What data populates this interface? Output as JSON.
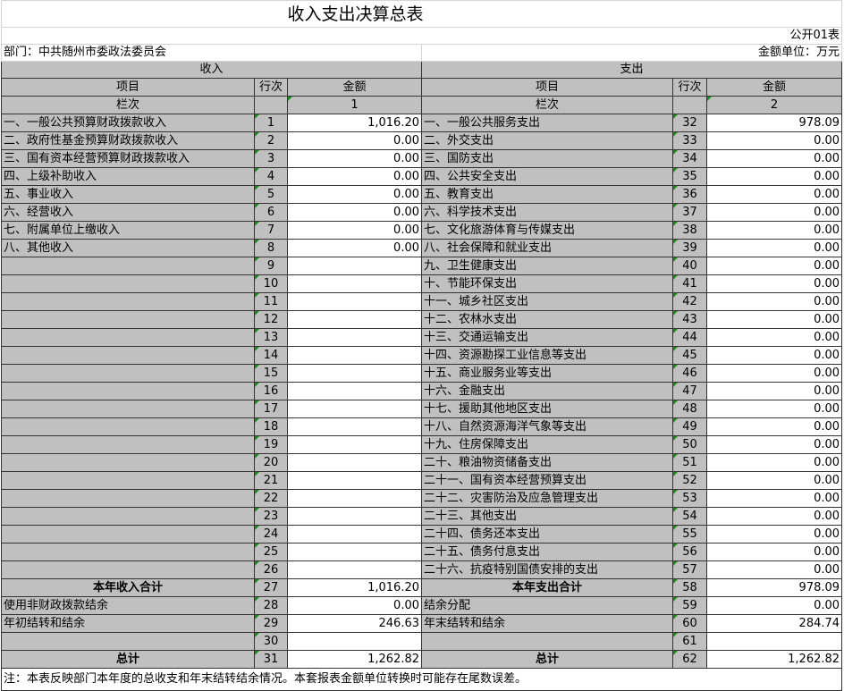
{
  "title": "收入支出决算总表",
  "form_code": "公开01表",
  "department": "部门：中共随州市委政法委员会",
  "unit": "金额单位：万元",
  "income_header": "收入",
  "expense_header": "支出",
  "col_item": "项目",
  "col_line": "行次",
  "col_amount": "金额",
  "col_index_label": "栏次",
  "income_col_no": "1",
  "expense_col_no": "2",
  "rows": [
    {
      "il": "一、一般公共预算财政拨款收入",
      "in": "1",
      "ia": "1,016.20",
      "el": "一、一般公共服务支出",
      "en": "32",
      "ea": "978.09"
    },
    {
      "il": "二、政府性基金预算财政拨款收入",
      "in": "2",
      "ia": "0.00",
      "el": "二、外交支出",
      "en": "33",
      "ea": "0.00"
    },
    {
      "il": "三、国有资本经营预算财政拨款收入",
      "in": "3",
      "ia": "0.00",
      "el": "三、国防支出",
      "en": "34",
      "ea": "0.00"
    },
    {
      "il": "四、上级补助收入",
      "in": "4",
      "ia": "0.00",
      "el": "四、公共安全支出",
      "en": "35",
      "ea": "0.00"
    },
    {
      "il": "五、事业收入",
      "in": "5",
      "ia": "0.00",
      "el": "五、教育支出",
      "en": "36",
      "ea": "0.00"
    },
    {
      "il": "六、经营收入",
      "in": "6",
      "ia": "0.00",
      "el": "六、科学技术支出",
      "en": "37",
      "ea": "0.00"
    },
    {
      "il": "七、附属单位上缴收入",
      "in": "7",
      "ia": "0.00",
      "el": "七、文化旅游体育与传媒支出",
      "en": "38",
      "ea": "0.00"
    },
    {
      "il": "八、其他收入",
      "in": "8",
      "ia": "0.00",
      "el": "八、社会保障和就业支出",
      "en": "39",
      "ea": "0.00"
    },
    {
      "il": "",
      "in": "9",
      "ia": "",
      "el": "九、卫生健康支出",
      "en": "40",
      "ea": "0.00"
    },
    {
      "il": "",
      "in": "10",
      "ia": "",
      "el": "十、节能环保支出",
      "en": "41",
      "ea": "0.00"
    },
    {
      "il": "",
      "in": "11",
      "ia": "",
      "el": "十一、城乡社区支出",
      "en": "42",
      "ea": "0.00"
    },
    {
      "il": "",
      "in": "12",
      "ia": "",
      "el": "十二、农林水支出",
      "en": "43",
      "ea": "0.00"
    },
    {
      "il": "",
      "in": "13",
      "ia": "",
      "el": "十三、交通运输支出",
      "en": "44",
      "ea": "0.00"
    },
    {
      "il": "",
      "in": "14",
      "ia": "",
      "el": "十四、资源勘探工业信息等支出",
      "en": "45",
      "ea": "0.00"
    },
    {
      "il": "",
      "in": "15",
      "ia": "",
      "el": "十五、商业服务业等支出",
      "en": "46",
      "ea": "0.00"
    },
    {
      "il": "",
      "in": "16",
      "ia": "",
      "el": "十六、金融支出",
      "en": "47",
      "ea": "0.00"
    },
    {
      "il": "",
      "in": "17",
      "ia": "",
      "el": "十七、援助其他地区支出",
      "en": "48",
      "ea": "0.00"
    },
    {
      "il": "",
      "in": "18",
      "ia": "",
      "el": "十八、自然资源海洋气象等支出",
      "en": "49",
      "ea": "0.00"
    },
    {
      "il": "",
      "in": "19",
      "ia": "",
      "el": "十九、住房保障支出",
      "en": "50",
      "ea": "0.00"
    },
    {
      "il": "",
      "in": "20",
      "ia": "",
      "el": "二十、粮油物资储备支出",
      "en": "51",
      "ea": "0.00"
    },
    {
      "il": "",
      "in": "21",
      "ia": "",
      "el": "二十一、国有资本经营预算支出",
      "en": "52",
      "ea": "0.00"
    },
    {
      "il": "",
      "in": "22",
      "ia": "",
      "el": "二十二、灾害防治及应急管理支出",
      "en": "53",
      "ea": "0.00"
    },
    {
      "il": "",
      "in": "23",
      "ia": "",
      "el": "二十三、其他支出",
      "en": "54",
      "ea": "0.00"
    },
    {
      "il": "",
      "in": "24",
      "ia": "",
      "el": "二十四、债务还本支出",
      "en": "55",
      "ea": "0.00"
    },
    {
      "il": "",
      "in": "25",
      "ia": "",
      "el": "二十五、债务付息支出",
      "en": "56",
      "ea": "0.00"
    },
    {
      "il": "",
      "in": "26",
      "ia": "",
      "el": "二十六、抗疫特别国债安排的支出",
      "en": "57",
      "ea": "0.00"
    },
    {
      "il": "本年收入合计",
      "in": "27",
      "ia": "1,016.20",
      "el": "本年支出合计",
      "en": "58",
      "ea": "978.09",
      "bold": true
    },
    {
      "il": "使用非财政拨款结余",
      "in": "28",
      "ia": "0.00",
      "el": "结余分配",
      "en": "59",
      "ea": "0.00"
    },
    {
      "il": "年初结转和结余",
      "in": "29",
      "ia": "246.63",
      "el": "年末结转和结余",
      "en": "60",
      "ea": "284.74"
    },
    {
      "il": "",
      "in": "30",
      "ia": "",
      "el": "",
      "en": "61",
      "ea": ""
    },
    {
      "il": "总计",
      "in": "31",
      "ia": "1,262.82",
      "el": "总计",
      "en": "62",
      "ea": "1,262.82",
      "bold": true
    }
  ],
  "note": "注：本表反映部门本年度的总收支和年末结转结余情况。本套报表金额单位转换时可能存在尾数误差。"
}
